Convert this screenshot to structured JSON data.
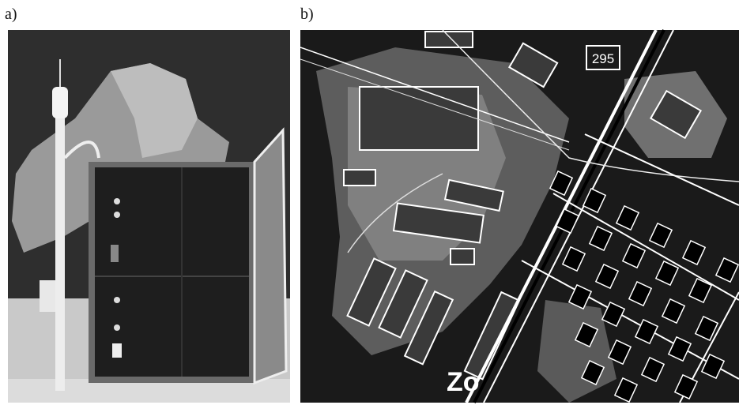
{
  "panel_a": {
    "label": "a)"
  },
  "panel_b": {
    "label": "b)",
    "road_number": "295",
    "district_label": "Zo"
  }
}
